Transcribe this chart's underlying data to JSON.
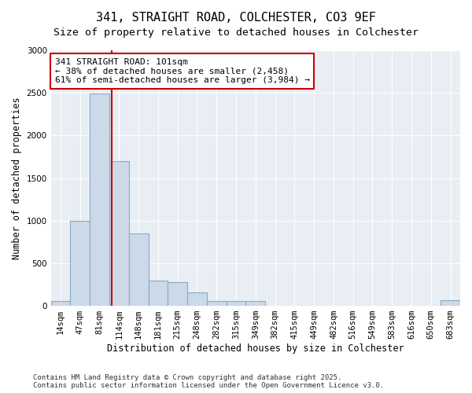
{
  "title1": "341, STRAIGHT ROAD, COLCHESTER, CO3 9EF",
  "title2": "Size of property relative to detached houses in Colchester",
  "xlabel": "Distribution of detached houses by size in Colchester",
  "ylabel": "Number of detached properties",
  "categories": [
    "14sqm",
    "47sqm",
    "81sqm",
    "114sqm",
    "148sqm",
    "181sqm",
    "215sqm",
    "248sqm",
    "282sqm",
    "315sqm",
    "349sqm",
    "382sqm",
    "415sqm",
    "449sqm",
    "482sqm",
    "516sqm",
    "549sqm",
    "583sqm",
    "616sqm",
    "650sqm",
    "683sqm"
  ],
  "values": [
    55,
    1000,
    2490,
    1700,
    850,
    300,
    280,
    160,
    55,
    55,
    55,
    0,
    0,
    0,
    0,
    0,
    0,
    0,
    0,
    0,
    65
  ],
  "bar_color": "#ccd9e8",
  "bar_edge_color": "#89a8c8",
  "vline_x": 2.62,
  "vline_color": "#cc0000",
  "annotation_text": "341 STRAIGHT ROAD: 101sqm\n← 38% of detached houses are smaller (2,458)\n61% of semi-detached houses are larger (3,984) →",
  "annotation_box_facecolor": "white",
  "annotation_box_edgecolor": "#cc0000",
  "ylim": [
    0,
    3000
  ],
  "yticks": [
    0,
    500,
    1000,
    1500,
    2000,
    2500,
    3000
  ],
  "footer1": "Contains HM Land Registry data © Crown copyright and database right 2025.",
  "footer2": "Contains public sector information licensed under the Open Government Licence v3.0.",
  "bg_color": "#e8eef4",
  "grid_color": "white",
  "title_fontsize": 11,
  "subtitle_fontsize": 9.5,
  "tick_fontsize": 7.5,
  "label_fontsize": 8.5,
  "annot_fontsize": 8,
  "footer_fontsize": 6.5
}
